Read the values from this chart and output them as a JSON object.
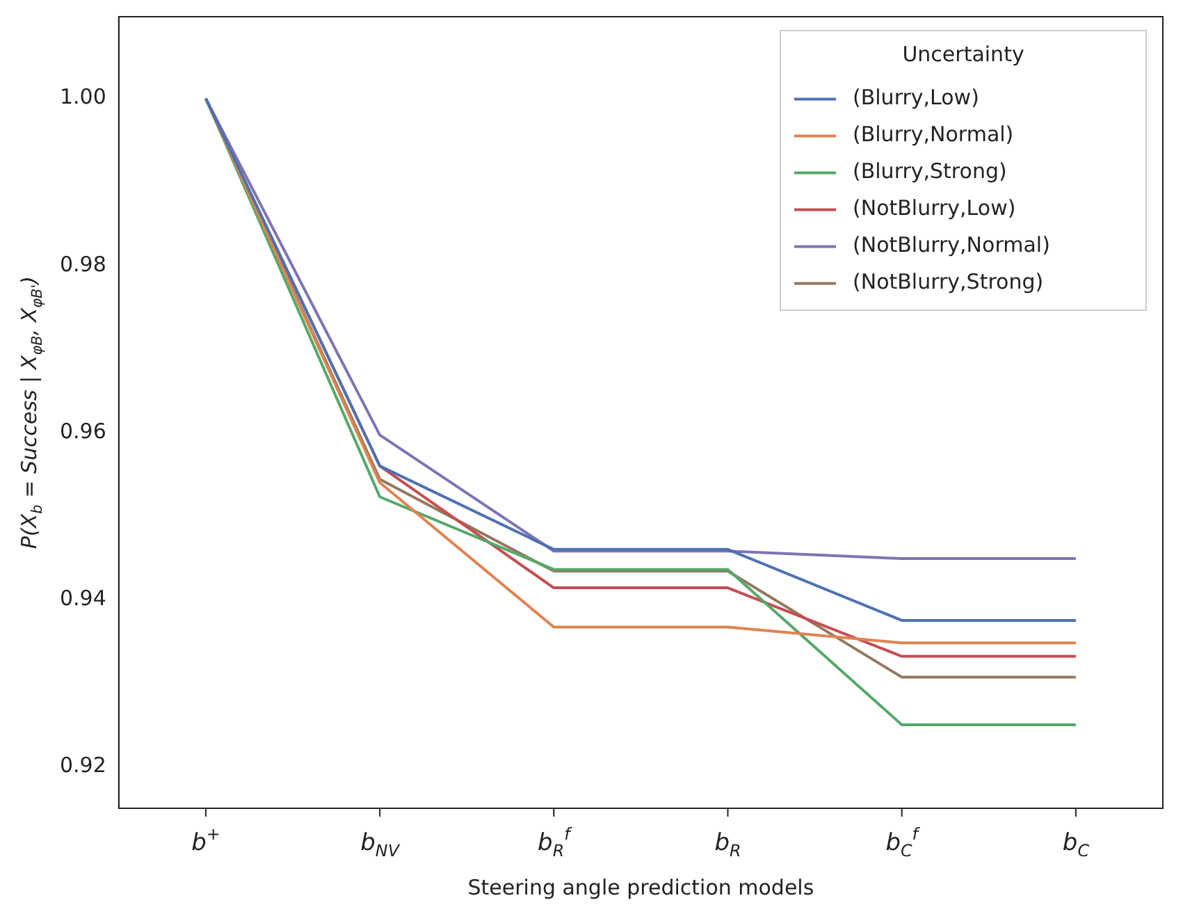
{
  "chart_data": {
    "type": "line",
    "xlabel": "Steering angle prediction models",
    "ylabel": "P(X$_{b}$ = Success | X$_{φB}$, X$_{φB'}$)",
    "legend_title": "Uncertainty",
    "legend": "top right",
    "grid": false,
    "marker": "none",
    "line_style": "solid",
    "categories": [
      "b$^{+}$",
      "b$_{NV}$",
      "b$_{R}$$^{f}$",
      "b$_{R}$",
      "b$_{C}$$^{f}$",
      "b$_{C}$"
    ],
    "ylim": [
      0.915,
      1.0098
    ],
    "yticks": [
      {
        "value": 0.92,
        "label": "0.92"
      },
      {
        "value": 0.94,
        "label": "0.94"
      },
      {
        "value": 0.96,
        "label": "0.96"
      },
      {
        "value": 0.98,
        "label": "0.98"
      },
      {
        "value": 1.0,
        "label": "1.00"
      }
    ],
    "series": [
      {
        "name": "(Blurry,Low)",
        "color": "#4c72b0",
        "values": [
          1.0,
          0.956,
          0.946,
          0.946,
          0.9375,
          0.9375
        ]
      },
      {
        "name": "(Blurry,Normal)",
        "color": "#dd8452",
        "values": [
          1.0,
          0.954,
          0.9367,
          0.9367,
          0.9348,
          0.9348
        ]
      },
      {
        "name": "(Blurry,Strong)",
        "color": "#55a868",
        "values": [
          1.0,
          0.9523,
          0.9436,
          0.9436,
          0.925,
          0.925
        ]
      },
      {
        "name": "(NotBlurry,Low)",
        "color": "#c44e52",
        "values": [
          1.0,
          0.956,
          0.9414,
          0.9414,
          0.9332,
          0.9332
        ]
      },
      {
        "name": "(NotBlurry,Normal)",
        "color": "#8172b3",
        "values": [
          1.0,
          0.9597,
          0.9458,
          0.9458,
          0.9449,
          0.9449
        ]
      },
      {
        "name": "(NotBlurry,Strong)",
        "color": "#937860",
        "values": [
          1.0,
          0.9544,
          0.9434,
          0.9434,
          0.9307,
          0.9307
        ]
      }
    ]
  }
}
